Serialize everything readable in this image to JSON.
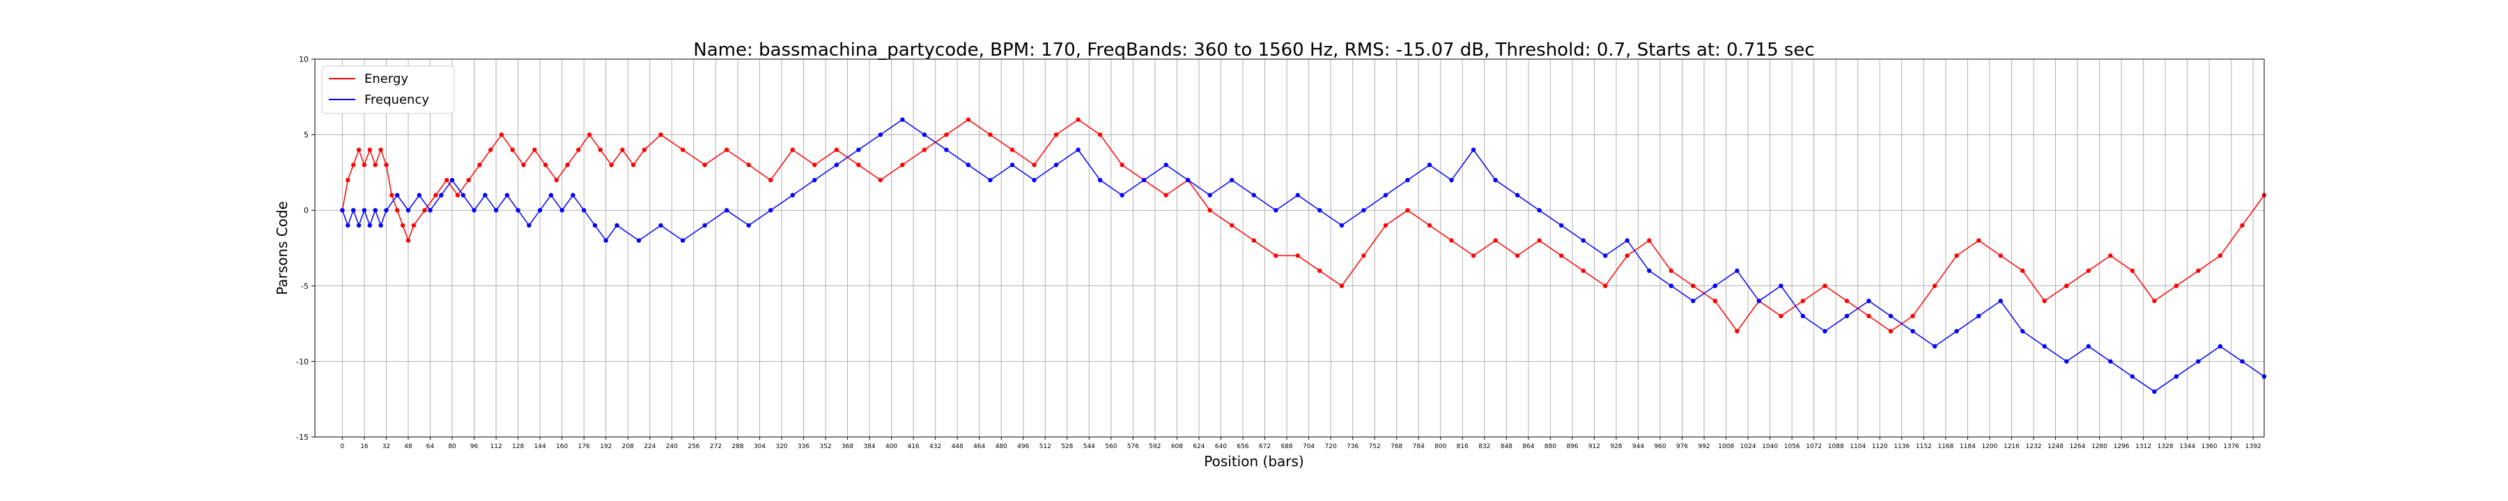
{
  "chart_data": {
    "type": "line",
    "title": "Name: bassmachina_partycode, BPM: 170, FreqBands: 360 to 1560 Hz, RMS: -15.07 dB, Threshold: 0.7, Starts at: 0.715 sec",
    "xlabel": "Position (bars)",
    "ylabel": "Parsons Code",
    "xlim": [
      -20,
      1400
    ],
    "ylim": [
      -15,
      10
    ],
    "yticks": [
      -15,
      -10,
      -5,
      0,
      5,
      10
    ],
    "xtick_step": 16,
    "xtick_max": 1392,
    "grid": true,
    "legend_position": "top-left",
    "series": [
      {
        "name": "Energy",
        "color": "#ff0000",
        "points": [
          [
            0,
            0
          ],
          [
            4,
            2
          ],
          [
            8,
            3
          ],
          [
            12,
            4
          ],
          [
            16,
            3
          ],
          [
            20,
            4
          ],
          [
            24,
            3
          ],
          [
            28,
            4
          ],
          [
            32,
            3
          ],
          [
            36,
            1
          ],
          [
            40,
            0
          ],
          [
            44,
            -1
          ],
          [
            48,
            -2
          ],
          [
            52,
            -1
          ],
          [
            60,
            0
          ],
          [
            68,
            1
          ],
          [
            76,
            2
          ],
          [
            84,
            1
          ],
          [
            92,
            2
          ],
          [
            100,
            3
          ],
          [
            108,
            4
          ],
          [
            116,
            5
          ],
          [
            124,
            4
          ],
          [
            132,
            3
          ],
          [
            140,
            4
          ],
          [
            148,
            3
          ],
          [
            156,
            2
          ],
          [
            164,
            3
          ],
          [
            172,
            4
          ],
          [
            180,
            5
          ],
          [
            188,
            4
          ],
          [
            196,
            3
          ],
          [
            204,
            4
          ],
          [
            212,
            3
          ],
          [
            220,
            4
          ],
          [
            232,
            5
          ],
          [
            248,
            4
          ],
          [
            264,
            3
          ],
          [
            280,
            4
          ],
          [
            296,
            3
          ],
          [
            312,
            2
          ],
          [
            328,
            4
          ],
          [
            344,
            3
          ],
          [
            360,
            4
          ],
          [
            376,
            3
          ],
          [
            392,
            2
          ],
          [
            408,
            3
          ],
          [
            424,
            4
          ],
          [
            440,
            5
          ],
          [
            456,
            6
          ],
          [
            472,
            5
          ],
          [
            488,
            4
          ],
          [
            504,
            3
          ],
          [
            520,
            5
          ],
          [
            536,
            6
          ],
          [
            552,
            5
          ],
          [
            568,
            3
          ],
          [
            584,
            2
          ],
          [
            600,
            1
          ],
          [
            616,
            2
          ],
          [
            632,
            0
          ],
          [
            648,
            -1
          ],
          [
            664,
            -2
          ],
          [
            680,
            -3
          ],
          [
            696,
            -3
          ],
          [
            712,
            -4
          ],
          [
            728,
            -5
          ],
          [
            744,
            -3
          ],
          [
            760,
            -1
          ],
          [
            776,
            0
          ],
          [
            792,
            -1
          ],
          [
            808,
            -2
          ],
          [
            824,
            -3
          ],
          [
            840,
            -2
          ],
          [
            856,
            -3
          ],
          [
            872,
            -2
          ],
          [
            888,
            -3
          ],
          [
            904,
            -4
          ],
          [
            920,
            -5
          ],
          [
            936,
            -3
          ],
          [
            952,
            -2
          ],
          [
            968,
            -4
          ],
          [
            984,
            -5
          ],
          [
            1000,
            -6
          ],
          [
            1016,
            -8
          ],
          [
            1032,
            -6
          ],
          [
            1048,
            -7
          ],
          [
            1064,
            -6
          ],
          [
            1080,
            -5
          ],
          [
            1096,
            -6
          ],
          [
            1112,
            -7
          ],
          [
            1128,
            -8
          ],
          [
            1144,
            -7
          ],
          [
            1160,
            -5
          ],
          [
            1176,
            -3
          ],
          [
            1192,
            -2
          ],
          [
            1208,
            -3
          ],
          [
            1224,
            -4
          ],
          [
            1240,
            -6
          ],
          [
            1256,
            -5
          ],
          [
            1272,
            -4
          ],
          [
            1288,
            -3
          ],
          [
            1304,
            -4
          ],
          [
            1320,
            -6
          ],
          [
            1336,
            -5
          ],
          [
            1352,
            -4
          ],
          [
            1368,
            -3
          ],
          [
            1384,
            -1
          ],
          [
            1400,
            1
          ]
        ]
      },
      {
        "name": "Frequency",
        "color": "#0000ff",
        "points": [
          [
            0,
            0
          ],
          [
            4,
            -1
          ],
          [
            8,
            0
          ],
          [
            12,
            -1
          ],
          [
            16,
            0
          ],
          [
            20,
            -1
          ],
          [
            24,
            0
          ],
          [
            28,
            -1
          ],
          [
            32,
            0
          ],
          [
            40,
            1
          ],
          [
            48,
            0
          ],
          [
            56,
            1
          ],
          [
            64,
            0
          ],
          [
            72,
            1
          ],
          [
            80,
            2
          ],
          [
            88,
            1
          ],
          [
            96,
            0
          ],
          [
            104,
            1
          ],
          [
            112,
            0
          ],
          [
            120,
            1
          ],
          [
            128,
            0
          ],
          [
            136,
            -1
          ],
          [
            144,
            0
          ],
          [
            152,
            1
          ],
          [
            160,
            0
          ],
          [
            168,
            1
          ],
          [
            176,
            0
          ],
          [
            184,
            -1
          ],
          [
            192,
            -2
          ],
          [
            200,
            -1
          ],
          [
            216,
            -2
          ],
          [
            232,
            -1
          ],
          [
            248,
            -2
          ],
          [
            264,
            -1
          ],
          [
            280,
            0
          ],
          [
            296,
            -1
          ],
          [
            312,
            0
          ],
          [
            328,
            1
          ],
          [
            344,
            2
          ],
          [
            360,
            3
          ],
          [
            376,
            4
          ],
          [
            392,
            5
          ],
          [
            408,
            6
          ],
          [
            424,
            5
          ],
          [
            440,
            4
          ],
          [
            456,
            3
          ],
          [
            472,
            2
          ],
          [
            488,
            3
          ],
          [
            504,
            2
          ],
          [
            520,
            3
          ],
          [
            536,
            4
          ],
          [
            552,
            2
          ],
          [
            568,
            1
          ],
          [
            584,
            2
          ],
          [
            600,
            3
          ],
          [
            616,
            2
          ],
          [
            632,
            1
          ],
          [
            648,
            2
          ],
          [
            664,
            1
          ],
          [
            680,
            0
          ],
          [
            696,
            1
          ],
          [
            712,
            0
          ],
          [
            728,
            -1
          ],
          [
            744,
            0
          ],
          [
            760,
            1
          ],
          [
            776,
            2
          ],
          [
            792,
            3
          ],
          [
            808,
            2
          ],
          [
            824,
            4
          ],
          [
            840,
            2
          ],
          [
            856,
            1
          ],
          [
            872,
            0
          ],
          [
            888,
            -1
          ],
          [
            904,
            -2
          ],
          [
            920,
            -3
          ],
          [
            936,
            -2
          ],
          [
            952,
            -4
          ],
          [
            968,
            -5
          ],
          [
            984,
            -6
          ],
          [
            1000,
            -5
          ],
          [
            1016,
            -4
          ],
          [
            1032,
            -6
          ],
          [
            1048,
            -5
          ],
          [
            1064,
            -7
          ],
          [
            1080,
            -8
          ],
          [
            1096,
            -7
          ],
          [
            1112,
            -6
          ],
          [
            1128,
            -7
          ],
          [
            1144,
            -8
          ],
          [
            1160,
            -9
          ],
          [
            1176,
            -8
          ],
          [
            1192,
            -7
          ],
          [
            1208,
            -6
          ],
          [
            1224,
            -8
          ],
          [
            1240,
            -9
          ],
          [
            1256,
            -10
          ],
          [
            1272,
            -9
          ],
          [
            1288,
            -10
          ],
          [
            1304,
            -11
          ],
          [
            1320,
            -12
          ],
          [
            1336,
            -11
          ],
          [
            1352,
            -10
          ],
          [
            1368,
            -9
          ],
          [
            1384,
            -10
          ],
          [
            1400,
            -11
          ]
        ]
      }
    ]
  }
}
